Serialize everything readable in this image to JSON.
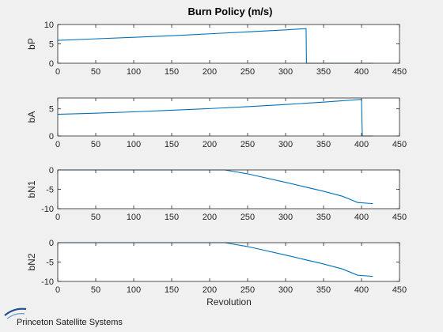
{
  "chart_data": {
    "title": "Burn Policy (m/s)",
    "type": "line",
    "line_color": "#0072BD",
    "plot_background": "#ffffff",
    "figure_background": "#f0f0f0",
    "grid": false,
    "subplots": [
      {
        "ylabel": "bP",
        "xlabel": "",
        "xlim": [
          0,
          450
        ],
        "ylim": [
          0,
          10
        ],
        "xticks": [
          0,
          50,
          100,
          150,
          200,
          250,
          300,
          350,
          400,
          450
        ],
        "yticks": [
          0,
          5,
          10
        ],
        "x": [
          0,
          50,
          100,
          150,
          200,
          250,
          300,
          327,
          327.5,
          350,
          400,
          415
        ],
        "y": [
          5.9,
          6.3,
          6.7,
          7.1,
          7.6,
          8.1,
          8.6,
          8.95,
          0,
          0,
          0,
          0
        ]
      },
      {
        "ylabel": "bA",
        "xlabel": "",
        "xlim": [
          0,
          450
        ],
        "ylim": [
          0,
          7
        ],
        "xticks": [
          0,
          50,
          100,
          150,
          200,
          250,
          300,
          350,
          400,
          450
        ],
        "yticks": [
          0,
          5
        ],
        "x": [
          0,
          50,
          100,
          150,
          200,
          250,
          300,
          350,
          400,
          401,
          405,
          415
        ],
        "y": [
          4.0,
          4.2,
          4.45,
          4.75,
          5.05,
          5.4,
          5.8,
          6.25,
          6.75,
          0,
          0,
          0
        ]
      },
      {
        "ylabel": "bN1",
        "xlabel": "",
        "xlim": [
          0,
          450
        ],
        "ylim": [
          -10,
          0
        ],
        "xticks": [
          0,
          50,
          100,
          150,
          200,
          250,
          300,
          350,
          400,
          450
        ],
        "yticks": [
          -10,
          -5,
          0
        ],
        "x": [
          0,
          50,
          100,
          150,
          200,
          220,
          250,
          300,
          350,
          375,
          395,
          415
        ],
        "y": [
          0,
          0,
          0,
          0,
          0,
          0,
          -1.0,
          -3.2,
          -5.5,
          -6.8,
          -8.4,
          -8.7
        ]
      },
      {
        "ylabel": "bN2",
        "xlabel": "Revolution",
        "xlim": [
          0,
          450
        ],
        "ylim": [
          -10,
          0
        ],
        "xticks": [
          0,
          50,
          100,
          150,
          200,
          250,
          300,
          350,
          400,
          450
        ],
        "yticks": [
          -10,
          -5,
          0
        ],
        "x": [
          0,
          50,
          100,
          150,
          200,
          220,
          250,
          300,
          350,
          375,
          395,
          415
        ],
        "y": [
          0,
          0,
          0,
          0,
          0,
          0,
          -1.0,
          -3.2,
          -5.5,
          -6.8,
          -8.4,
          -8.7
        ]
      }
    ]
  },
  "branding": {
    "company": "Princeton Satellite Systems",
    "logo_color": "#1f4e8c"
  }
}
